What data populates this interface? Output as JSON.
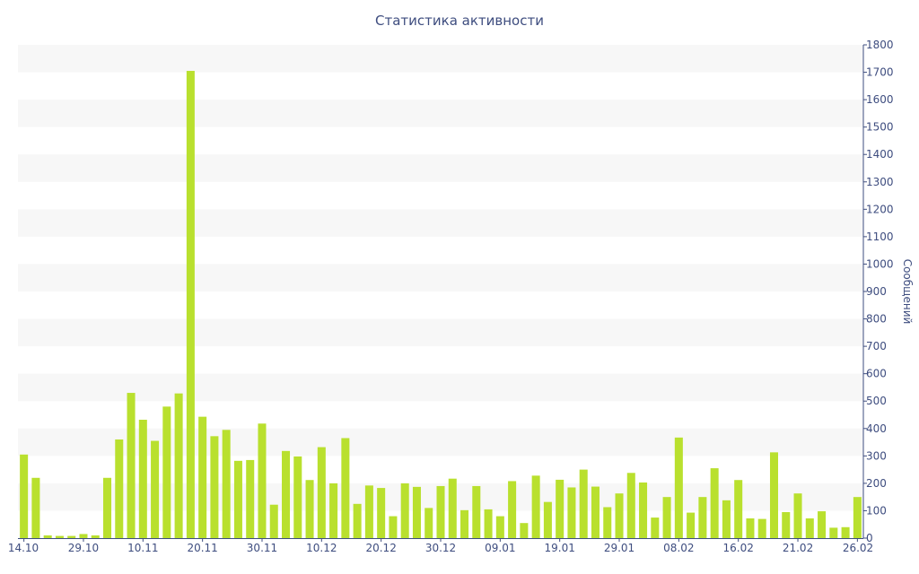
{
  "chart_data": {
    "type": "bar",
    "title": "Статистика активности",
    "ylabel": "Сообщений",
    "xlabel": "",
    "ylim": [
      0,
      1800
    ],
    "yticks": [
      0,
      100,
      200,
      300,
      400,
      500,
      600,
      700,
      800,
      900,
      1000,
      1100,
      1200,
      1300,
      1400,
      1500,
      1600,
      1700,
      1800
    ],
    "y_axis_position": "right",
    "grid": "alternating horizontal bands",
    "x_tick_labels": [
      "14.10",
      "29.10",
      "10.11",
      "20.11",
      "30.11",
      "10.12",
      "20.12",
      "30.12",
      "09.01",
      "19.01",
      "29.01",
      "08.02",
      "16.02",
      "21.02",
      "26.02"
    ],
    "x_tick_indices": [
      0,
      5,
      10,
      15,
      20,
      25,
      30,
      35,
      40,
      45,
      50,
      55,
      60,
      65,
      70
    ],
    "series": [
      {
        "color": "#b9e02e",
        "values": [
          305,
          220,
          10,
          8,
          8,
          15,
          10,
          220,
          360,
          530,
          432,
          355,
          480,
          528,
          1705,
          443,
          372,
          395,
          282,
          285,
          418,
          122,
          318,
          298,
          212,
          332,
          200,
          365,
          125,
          192,
          183,
          80,
          200,
          187,
          110,
          190,
          217,
          102,
          190,
          105,
          80,
          208,
          55,
          228,
          132,
          213,
          185,
          250,
          188,
          113,
          163,
          238,
          203,
          75,
          150,
          367,
          93,
          150,
          255,
          138,
          212,
          72,
          70,
          313,
          95,
          163,
          72,
          98,
          38,
          40,
          150
        ]
      }
    ]
  }
}
